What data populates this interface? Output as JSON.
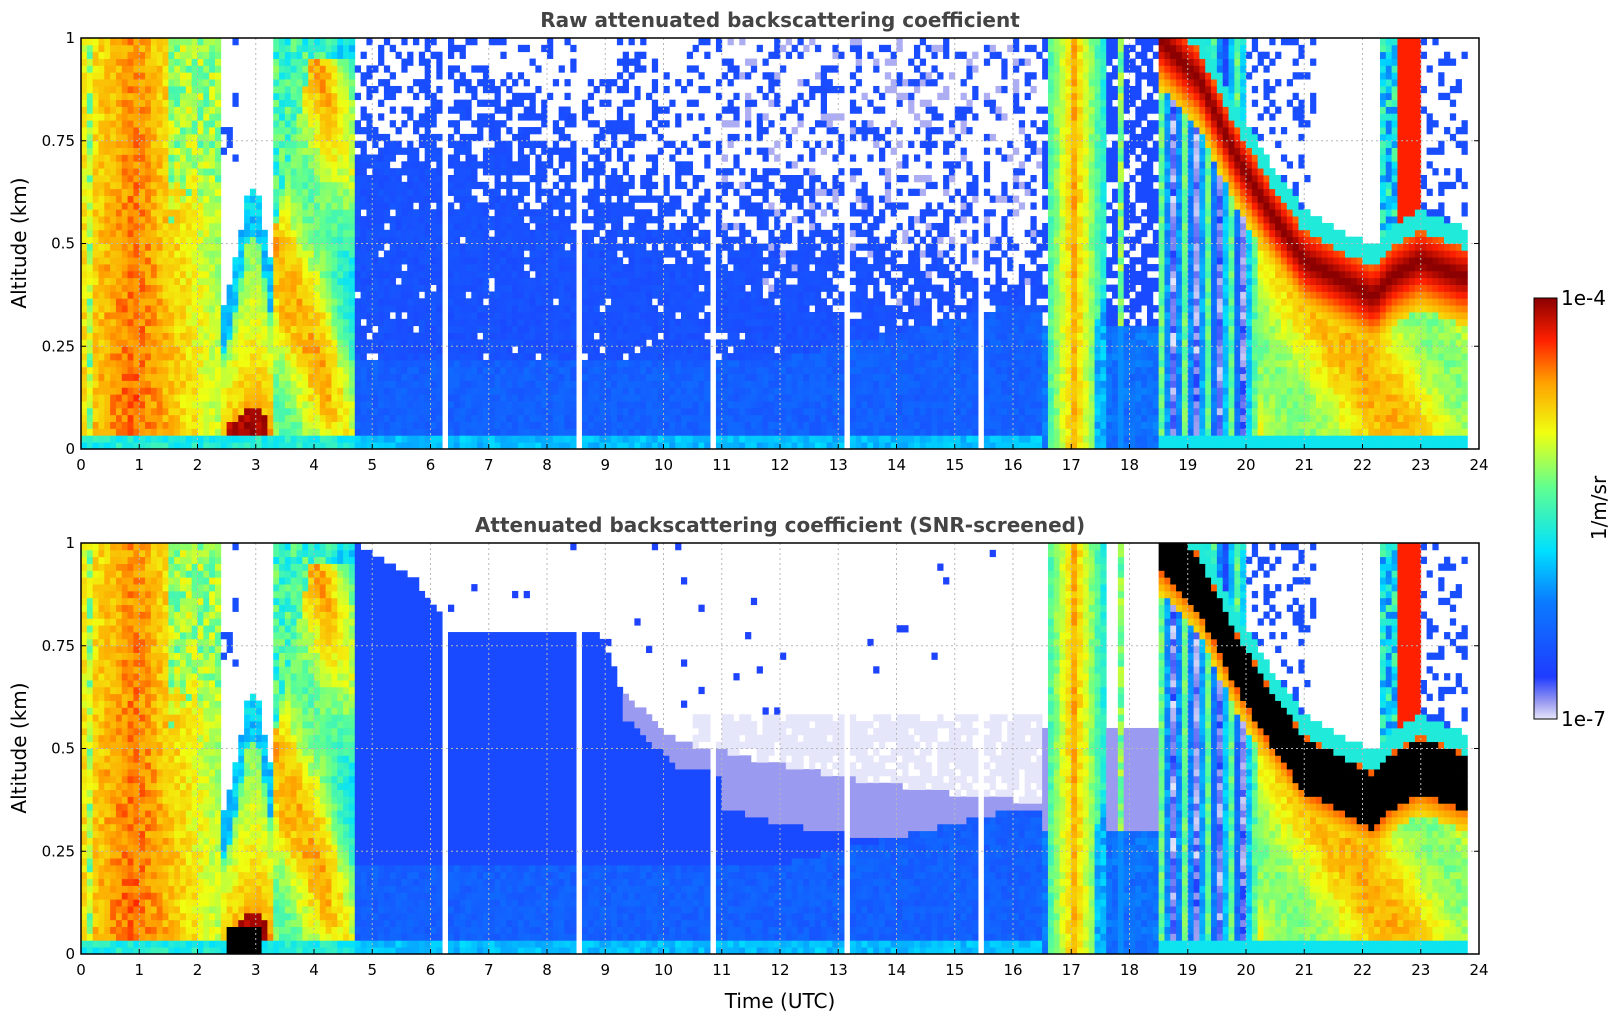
{
  "chart_data": [
    {
      "type": "heatmap",
      "title": "Raw attenuated backscattering coefficient",
      "xlabel": "",
      "ylabel": "Altitude (km)",
      "xlim": [
        0,
        24
      ],
      "ylim": [
        0,
        1
      ],
      "xticks": [
        "0",
        "1",
        "2",
        "3",
        "4",
        "5",
        "6",
        "7",
        "8",
        "9",
        "10",
        "11",
        "12",
        "13",
        "14",
        "15",
        "16",
        "17",
        "18",
        "19",
        "20",
        "21",
        "22",
        "23",
        "24"
      ],
      "yticks": [
        "0",
        "0.25",
        "0.5",
        "0.75",
        "1"
      ],
      "grid": true,
      "screened": false
    },
    {
      "type": "heatmap",
      "title": "Attenuated backscattering coefficient (SNR-screened)",
      "xlabel": "Time (UTC)",
      "ylabel": "Altitude (km)",
      "xlim": [
        0,
        24
      ],
      "ylim": [
        0,
        1
      ],
      "xticks": [
        "0",
        "1",
        "2",
        "3",
        "4",
        "5",
        "6",
        "7",
        "8",
        "9",
        "10",
        "11",
        "12",
        "13",
        "14",
        "15",
        "16",
        "17",
        "18",
        "19",
        "20",
        "21",
        "22",
        "23",
        "24"
      ],
      "yticks": [
        "0",
        "0.25",
        "0.5",
        "0.75",
        "1"
      ],
      "grid": true,
      "screened": true
    }
  ],
  "colorbar": {
    "label": "1/m/sr",
    "max_label": "1e-4",
    "min_label": "1e-7",
    "scale": "log",
    "range": [
      1e-07,
      0.0001
    ]
  },
  "colors": {
    "frame": "#000000",
    "title": "#444444",
    "saturated": "#000000"
  }
}
